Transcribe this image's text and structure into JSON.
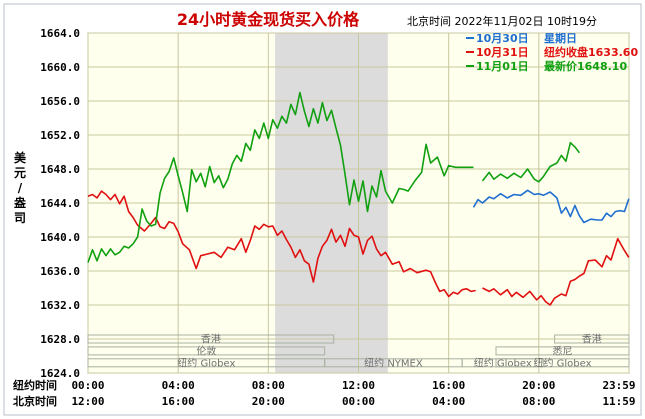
{
  "chart_data": {
    "type": "line",
    "title": "24小时黄金现货买入价格",
    "header_right": "北京时间   2022年11月02日 10时19分",
    "ylabel": [
      "美",
      "元",
      "/",
      "盎",
      "司"
    ],
    "ylim": [
      1624.0,
      1664.0
    ],
    "yticks": [
      "1624.0",
      "1628.0",
      "1632.0",
      "1636.0",
      "1640.0",
      "1644.0",
      "1648.0",
      "1652.0",
      "1656.0",
      "1660.0",
      "1664.0"
    ],
    "xlim": [
      0,
      24
    ],
    "xaxis_rows": [
      {
        "label": "纽约时间",
        "ticks": [
          "00:00",
          "04:00",
          "08:00",
          "12:00",
          "16:00",
          "20:00",
          "23:59"
        ]
      },
      {
        "label": "北京时间",
        "ticks": [
          "12:00",
          "16:00",
          "20:00",
          "00:00",
          "04:00",
          "08:00",
          "11:59"
        ]
      }
    ],
    "legend": [
      {
        "date": "10月30日",
        "desc": "星期日",
        "color": "#1f6fd0"
      },
      {
        "date": "10月31日",
        "desc": "纽约收盘1633.60",
        "color": "#e01010"
      },
      {
        "date": "11月01日",
        "desc": "最新价1648.10",
        "color": "#10a010"
      }
    ],
    "market_bars": [
      {
        "label": "香港",
        "row": 1,
        "start": 0,
        "end": 10.9
      },
      {
        "label": "伦敦",
        "row": 2,
        "start": 0,
        "end": 10.5
      },
      {
        "label": "纽约 Globex",
        "row": 3,
        "start": 0,
        "end": 10.5
      },
      {
        "label": "纽约 NYMEX",
        "row": 3,
        "start": 10.5,
        "end": 16.6
      },
      {
        "label": "纽约 Globex",
        "row": 3,
        "start": 16.6,
        "end": 20.2
      },
      {
        "label": "香港",
        "row": 1,
        "start": 20.7,
        "end": 24
      },
      {
        "label": "悉尼",
        "row": 2,
        "start": 18.1,
        "end": 24
      },
      {
        "label": "纽约 Globex",
        "row": 3,
        "start": 18.1,
        "end": 24
      }
    ],
    "shaded_span": [
      8.3,
      13.3
    ],
    "series": [
      {
        "name": "10月30日",
        "color": "#1f6fd0",
        "x": [
          17.1,
          17.3,
          17.5,
          17.8,
          18.0,
          18.3,
          18.6,
          18.9,
          19.2,
          19.5,
          19.8,
          20.0,
          20.2,
          20.5,
          20.8,
          21.0,
          21.2,
          21.4,
          21.6,
          21.8,
          22.0,
          22.3,
          22.6,
          22.8,
          23.0,
          23.2,
          23.4,
          23.6,
          23.8,
          23.99
        ],
        "y": [
          1643.5,
          1644.4,
          1644.0,
          1644.7,
          1644.5,
          1645.1,
          1644.6,
          1645.0,
          1644.9,
          1645.5,
          1645.0,
          1645.1,
          1644.9,
          1645.3,
          1644.6,
          1642.8,
          1643.5,
          1642.4,
          1643.7,
          1642.5,
          1641.7,
          1642.1,
          1642.0,
          1642.0,
          1642.8,
          1642.4,
          1643.0,
          1643.1,
          1643.0,
          1644.5
        ]
      },
      {
        "name": "10月31日",
        "color": "#e01010",
        "x": [
          0,
          0.2,
          0.4,
          0.6,
          0.8,
          1.0,
          1.2,
          1.4,
          1.6,
          1.8,
          2.0,
          2.2,
          2.5,
          2.8,
          3.0,
          3.2,
          3.4,
          3.6,
          3.8,
          4.0,
          4.2,
          4.5,
          4.8,
          5.0,
          5.3,
          5.6,
          5.9,
          6.2,
          6.5,
          6.8,
          7.0,
          7.2,
          7.4,
          7.6,
          7.8,
          8.0,
          8.2,
          8.4,
          8.6,
          8.8,
          9.0,
          9.2,
          9.4,
          9.6,
          9.8,
          10.0,
          10.2,
          10.4,
          10.6,
          10.8,
          11.0,
          11.2,
          11.4,
          11.6,
          11.8,
          12.0,
          12.2,
          12.4,
          12.6,
          12.8,
          13.0,
          13.2,
          13.5,
          13.8,
          14.0,
          14.3,
          14.6,
          15.0,
          15.2,
          15.4,
          15.6,
          15.8,
          16.0,
          16.2,
          16.4,
          16.6,
          16.8,
          17.0,
          17.2,
          17.3,
          17.5,
          17.8,
          18.0,
          18.3,
          18.6,
          18.8,
          19.0,
          19.3,
          19.6,
          19.9,
          20.1,
          20.3,
          20.5,
          20.7,
          21.0,
          21.2,
          21.4,
          21.6,
          21.8,
          22.0,
          22.2,
          22.5,
          22.8,
          23.0,
          23.2,
          23.5,
          23.8,
          23.99
        ],
        "y": [
          1644.8,
          1645.0,
          1644.6,
          1645.4,
          1645.0,
          1644.4,
          1645.0,
          1643.9,
          1644.8,
          1643.0,
          1642.3,
          1641.4,
          1640.7,
          1641.6,
          1642.3,
          1641.2,
          1641.0,
          1641.8,
          1641.6,
          1640.6,
          1639.2,
          1638.5,
          1636.3,
          1637.8,
          1638.0,
          1638.2,
          1637.6,
          1638.8,
          1638.5,
          1639.8,
          1638.2,
          1639.6,
          1641.3,
          1640.9,
          1641.5,
          1641.2,
          1641.3,
          1640.2,
          1640.7,
          1639.7,
          1638.8,
          1637.6,
          1638.5,
          1637.2,
          1636.8,
          1634.7,
          1637.5,
          1638.9,
          1639.6,
          1640.9,
          1639.4,
          1640.2,
          1638.9,
          1641.0,
          1640.2,
          1640.0,
          1638.0,
          1639.6,
          1640.1,
          1638.6,
          1637.8,
          1638.2,
          1636.8,
          1637.1,
          1635.9,
          1636.3,
          1635.8,
          1636.1,
          1635.9,
          1634.7,
          1633.6,
          1633.8,
          1633.0,
          1633.5,
          1633.3,
          1633.8,
          1633.9,
          1633.6,
          1633.7,
          null,
          1634.0,
          1633.6,
          1633.9,
          1633.2,
          1633.8,
          1633.0,
          1633.5,
          1632.9,
          1633.6,
          1632.6,
          1633.1,
          1632.4,
          1632.0,
          1632.8,
          1633.3,
          1633.1,
          1634.8,
          1635.0,
          1635.4,
          1635.7,
          1637.2,
          1637.3,
          1636.5,
          1637.8,
          1637.3,
          1639.8,
          1638.4,
          1637.6
        ]
      },
      {
        "name": "11月01日",
        "color": "#10a010",
        "x": [
          0,
          0.2,
          0.4,
          0.6,
          0.8,
          1.0,
          1.2,
          1.4,
          1.6,
          1.8,
          2.0,
          2.2,
          2.4,
          2.6,
          2.8,
          3.0,
          3.2,
          3.4,
          3.6,
          3.8,
          4.0,
          4.2,
          4.4,
          4.6,
          4.8,
          5.0,
          5.2,
          5.4,
          5.6,
          5.8,
          6.0,
          6.2,
          6.4,
          6.6,
          6.8,
          7.0,
          7.2,
          7.4,
          7.6,
          7.8,
          8.0,
          8.2,
          8.4,
          8.6,
          8.8,
          9.0,
          9.2,
          9.4,
          9.6,
          9.8,
          10.0,
          10.2,
          10.4,
          10.6,
          10.8,
          11.0,
          11.2,
          11.4,
          11.6,
          11.8,
          12.0,
          12.2,
          12.4,
          12.6,
          12.8,
          13.0,
          13.2,
          13.5,
          13.8,
          14.0,
          14.2,
          14.5,
          14.8,
          15.0,
          15.2,
          15.5,
          15.8,
          16.0,
          16.3,
          16.6,
          16.9,
          17.1,
          17.3,
          17.5,
          17.8,
          18.0,
          18.3,
          18.6,
          18.9,
          19.2,
          19.5,
          19.8,
          20.0,
          20.2,
          20.5,
          20.8,
          21.0,
          21.2,
          21.4,
          21.6,
          21.8
        ],
        "y": [
          1637.0,
          1638.5,
          1637.2,
          1638.6,
          1637.8,
          1638.6,
          1637.9,
          1638.2,
          1638.9,
          1638.7,
          1639.2,
          1640.0,
          1643.3,
          1641.9,
          1641.3,
          1641.5,
          1645.2,
          1646.9,
          1647.7,
          1649.3,
          1647.2,
          1645.2,
          1643.0,
          1647.9,
          1646.5,
          1647.5,
          1645.9,
          1648.3,
          1646.4,
          1647.2,
          1645.8,
          1646.8,
          1648.6,
          1649.6,
          1648.9,
          1651.0,
          1650.2,
          1652.6,
          1651.6,
          1653.4,
          1651.6,
          1653.8,
          1652.8,
          1654.2,
          1653.4,
          1655.6,
          1654.4,
          1657.0,
          1654.8,
          1653.0,
          1655.1,
          1653.4,
          1655.8,
          1653.7,
          1654.9,
          1652.8,
          1650.8,
          1647.4,
          1643.8,
          1646.7,
          1644.2,
          1646.6,
          1643.0,
          1646.0,
          1644.7,
          1647.8,
          1645.4,
          1644.0,
          1645.7,
          1645.6,
          1645.4,
          1646.6,
          1647.6,
          1650.9,
          1648.7,
          1649.4,
          1647.2,
          1648.4,
          1648.2,
          1648.2,
          1648.2,
          1648.2,
          null,
          1646.6,
          1647.6,
          1646.8,
          1647.4,
          1646.9,
          1647.5,
          1647.0,
          1648.0,
          1646.8,
          1646.5,
          1647.1,
          1648.3,
          1648.7,
          1649.6,
          1648.9,
          1651.1,
          1650.6,
          1649.9
        ]
      }
    ]
  }
}
